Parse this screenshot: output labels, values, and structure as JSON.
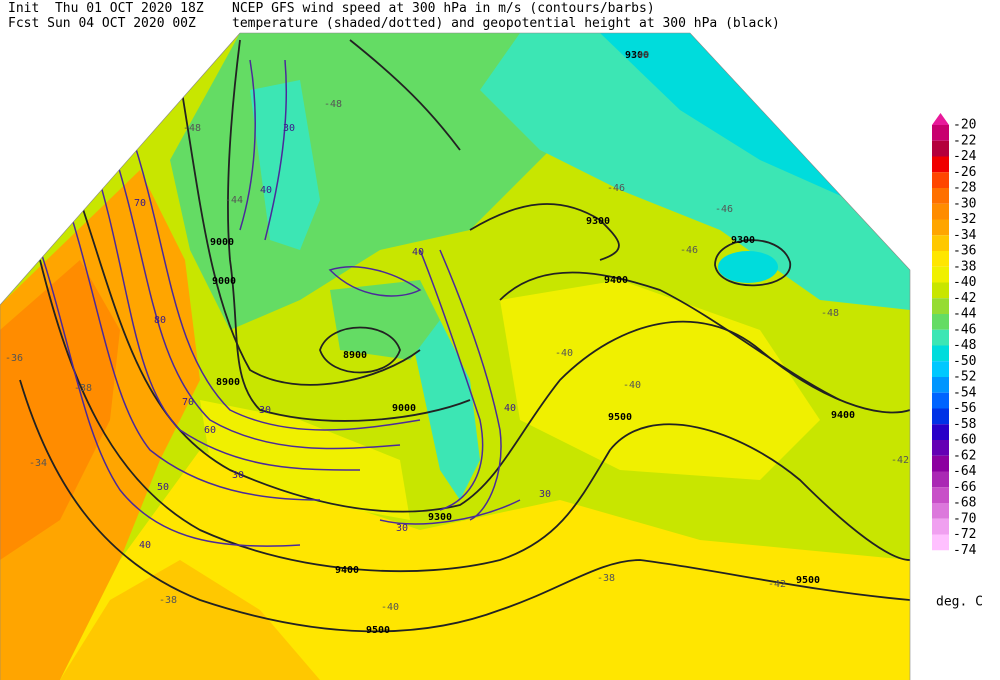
{
  "header": {
    "init": "Init  Thu 01 OCT 2020 18Z",
    "forecast": "Fcst Sun 04 OCT 2020 00Z",
    "title_line1": "NCEP GFS wind speed at 300 hPa in m/s (contours/barbs)",
    "title_line2": "temperature (shaded/dotted) and geopotential height at 300 hPa (black)"
  },
  "colorbar": {
    "unit": "deg. C",
    "items": [
      {
        "label": -20,
        "color": "#e8199a"
      },
      {
        "label": -22,
        "color": "#c8006e"
      },
      {
        "label": -24,
        "color": "#b4003c"
      },
      {
        "label": -26,
        "color": "#f00000"
      },
      {
        "label": -28,
        "color": "#ff4600"
      },
      {
        "label": -30,
        "color": "#ff7000"
      },
      {
        "label": -32,
        "color": "#ff8c00"
      },
      {
        "label": -34,
        "color": "#ffa500"
      },
      {
        "label": -36,
        "color": "#ffc800"
      },
      {
        "label": -38,
        "color": "#ffe600"
      },
      {
        "label": -40,
        "color": "#f0f000"
      },
      {
        "label": -42,
        "color": "#c8e600"
      },
      {
        "label": -44,
        "color": "#96dc32"
      },
      {
        "label": -46,
        "color": "#64dc64"
      },
      {
        "label": -48,
        "color": "#3ce6b4"
      },
      {
        "label": -50,
        "color": "#00dcdc"
      },
      {
        "label": -52,
        "color": "#00c8ff"
      },
      {
        "label": -54,
        "color": "#0096ff"
      },
      {
        "label": -56,
        "color": "#0064ff"
      },
      {
        "label": -58,
        "color": "#0032e6"
      },
      {
        "label": -60,
        "color": "#2800c8"
      },
      {
        "label": -62,
        "color": "#6400b4"
      },
      {
        "label": -64,
        "color": "#8c00a0"
      },
      {
        "label": -66,
        "color": "#aa28b4"
      },
      {
        "label": -68,
        "color": "#c850c8"
      },
      {
        "label": -70,
        "color": "#dc78dc"
      },
      {
        "label": -72,
        "color": "#f0a0f0"
      },
      {
        "label": -74,
        "color": "#ffc0ff"
      }
    ]
  },
  "map_labels": {
    "height": [
      "9000",
      "9000",
      "8900",
      "8900",
      "9300",
      "9300",
      "9300",
      "9400",
      "9400",
      "9500",
      "9500",
      "9400",
      "9500",
      "9300",
      "9000"
    ],
    "wind": [
      "30",
      "40",
      "70",
      "80",
      "70",
      "60",
      "50",
      "40",
      "30",
      "30",
      "40",
      "40",
      "30",
      "30"
    ],
    "temperature": [
      "-48",
      "-48",
      "-44",
      "-46",
      "-46",
      "-48",
      "-36",
      "-38",
      "-34",
      "-38",
      "-40",
      "-40",
      "-40",
      "-42",
      "-46",
      "-48",
      "-38",
      "-42"
    ]
  }
}
